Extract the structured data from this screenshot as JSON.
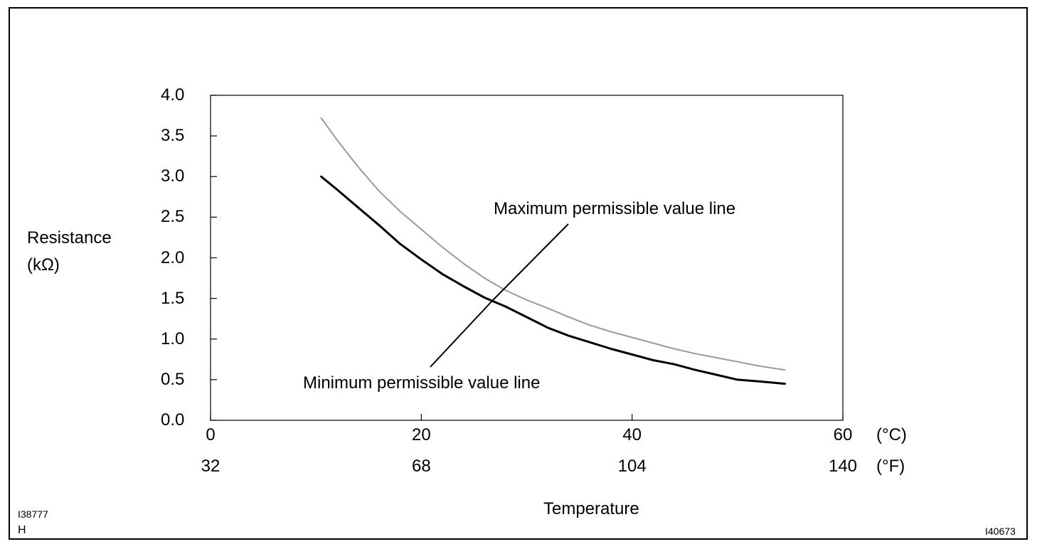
{
  "chart_data": {
    "type": "line",
    "title": "",
    "ylabel_line1": "Resistance",
    "ylabel_line2": "(kΩ)",
    "xlabel": "Temperature",
    "xlim": [
      0,
      60
    ],
    "ylim": [
      0.0,
      4.0
    ],
    "grid": false,
    "y_ticks": [
      0.0,
      0.5,
      1.0,
      1.5,
      2.0,
      2.5,
      3.0,
      3.5,
      4.0
    ],
    "y_tick_labels": [
      "0.0",
      "0.5",
      "1.0",
      "1.5",
      "2.0",
      "2.5",
      "3.0",
      "3.5",
      "4.0"
    ],
    "x_ticks": [
      0,
      20,
      40,
      60
    ],
    "x_tick_labels_c": [
      "0",
      "20",
      "40",
      "60"
    ],
    "x_tick_labels_f": [
      "32",
      "68",
      "104",
      "140"
    ],
    "unit_c": "(°C)",
    "unit_f": "(°F)",
    "series": [
      {
        "name": "Maximum permissible value line",
        "color": "#9a9a9a",
        "x": [
          10.5,
          12,
          14,
          16,
          18,
          20,
          22,
          24,
          26,
          28,
          30,
          32,
          34,
          36,
          38,
          40,
          42,
          44,
          46,
          48,
          50,
          52,
          54.5
        ],
        "y": [
          3.72,
          3.45,
          3.12,
          2.82,
          2.57,
          2.35,
          2.13,
          1.93,
          1.75,
          1.6,
          1.48,
          1.38,
          1.27,
          1.17,
          1.09,
          1.02,
          0.95,
          0.88,
          0.82,
          0.77,
          0.72,
          0.67,
          0.62
        ]
      },
      {
        "name": "Minimum permissible value line",
        "color": "#000000",
        "x": [
          10.5,
          12,
          14,
          16,
          18,
          20,
          22,
          24,
          26,
          28,
          30,
          32,
          34,
          36,
          38,
          40,
          42,
          44,
          46,
          48,
          50,
          52,
          54.5
        ],
        "y": [
          3.0,
          2.84,
          2.62,
          2.4,
          2.17,
          1.98,
          1.8,
          1.65,
          1.51,
          1.4,
          1.27,
          1.14,
          1.04,
          0.96,
          0.88,
          0.81,
          0.74,
          0.69,
          0.62,
          0.56,
          0.5,
          0.48,
          0.45
        ]
      }
    ],
    "annotations": [
      {
        "text": "Maximum permissible value line",
        "points_to_x": 27,
        "points_to_y": 1.62
      },
      {
        "text": "Minimum permissible value line",
        "points_to_x": 27,
        "points_to_y": 1.45
      }
    ]
  },
  "figure_ids": {
    "left_code": "I38777",
    "left_mark": "H",
    "right_code": "I40673"
  }
}
